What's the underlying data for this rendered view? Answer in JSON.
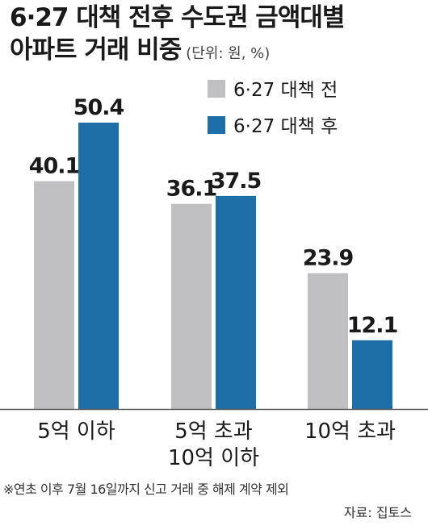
{
  "title_line1": "6·27 대책 전후 수도권 금액대별",
  "title_line2": "아파트 거래 비중",
  "unit": "(단위: 원, %)",
  "footnote": "※연초 이후 7월 16일까지 신고 거래 중 해제 계약 제외",
  "source": "자료: 집토스",
  "chart_data": {
    "type": "bar",
    "categories": [
      [
        "5억 이하"
      ],
      [
        "5억 초과",
        "10억 이하"
      ],
      [
        "10억 초과"
      ]
    ],
    "series": [
      {
        "name": "6·27 대책 전",
        "values": [
          40.1,
          36.1,
          23.9
        ],
        "color": "#c0c0c2"
      },
      {
        "name": "6·27 대책 후",
        "values": [
          50.4,
          37.5,
          12.1
        ],
        "color": "#1e6ea8"
      }
    ],
    "legend_position": "top-right",
    "ylim": [
      0,
      50.4
    ],
    "grid": false
  }
}
